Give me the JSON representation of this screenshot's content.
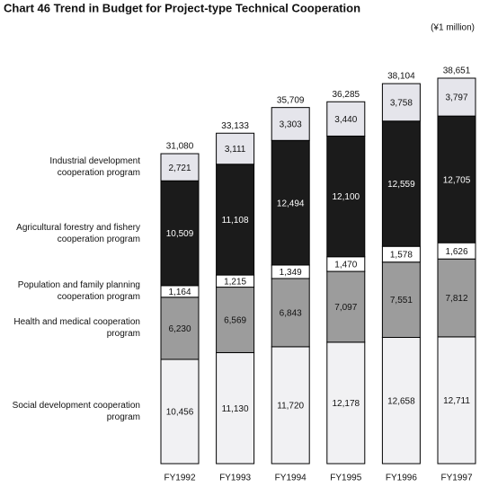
{
  "chart_data": {
    "type": "stacked-bar",
    "title": "Chart 46  Trend in Budget for Project-type Technical Cooperation",
    "unit_label": "(¥1 million)",
    "categories": [
      "FY1992",
      "FY1993",
      "FY1994",
      "FY1995",
      "FY1996",
      "FY1997"
    ],
    "series": [
      {
        "name": "Social development cooperation program",
        "color": "#f1f1f3",
        "values": [
          10456,
          11130,
          11720,
          12178,
          12658,
          12711
        ],
        "value_labels": [
          "10,456",
          "11,130",
          "11,720",
          "12,178",
          "12,658",
          "12,711"
        ]
      },
      {
        "name": "Health and medical cooperation program",
        "color": "#9c9c9c",
        "values": [
          6230,
          6569,
          6843,
          7097,
          7551,
          7812
        ],
        "value_labels": [
          "6,230",
          "6,569",
          "6,843",
          "7,097",
          "7,551",
          "7,812"
        ]
      },
      {
        "name": "Population and family planning cooperation program",
        "color": "#ffffff",
        "values": [
          1164,
          1215,
          1349,
          1470,
          1578,
          1626
        ],
        "value_labels": [
          "1,164",
          "1,215",
          "1,349",
          "1,470",
          "1,578",
          "1,626"
        ]
      },
      {
        "name": "Agricultural forestry and fishery cooperation program",
        "color": "#1b1b1b",
        "values": [
          10509,
          11108,
          12494,
          12100,
          12559,
          12705
        ],
        "value_labels": [
          "10,509",
          "11,108",
          "12,494",
          "12,100",
          "12,559",
          "12,705"
        ]
      },
      {
        "name": "Industrial development cooperation program",
        "color": "#e5e5eb",
        "values": [
          2721,
          3111,
          3303,
          3440,
          3758,
          3797
        ],
        "value_labels": [
          "2,721",
          "3,111",
          "3,303",
          "3,440",
          "3,758",
          "3,797"
        ]
      }
    ],
    "totals": {
      "values": [
        31080,
        33133,
        35709,
        36285,
        38104,
        38651
      ],
      "value_labels": [
        "31,080",
        "33,133",
        "35,709",
        "36,285",
        "38,104",
        "38,651"
      ]
    }
  }
}
